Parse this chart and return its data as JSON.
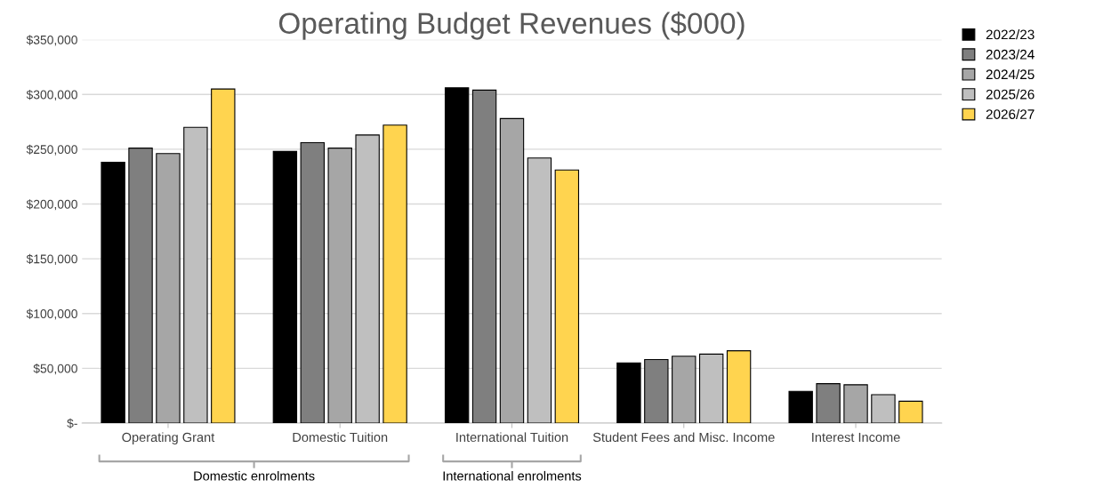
{
  "chart_data": {
    "type": "bar",
    "title": "Operating Budget Revenues ($000)",
    "categories": [
      "Operating Grant",
      "Domestic Tuition",
      "International Tuition",
      "Student Fees and Misc. Income",
      "Interest Income"
    ],
    "series": [
      {
        "name": "2022/23",
        "color": "#000000",
        "values": [
          238000,
          248000,
          306000,
          55000,
          29000
        ]
      },
      {
        "name": "2023/24",
        "color": "#7f7f7f",
        "values": [
          251000,
          256000,
          304000,
          58000,
          36000
        ]
      },
      {
        "name": "2024/25",
        "color": "#a6a6a6",
        "values": [
          246000,
          251000,
          278000,
          61000,
          35000
        ]
      },
      {
        "name": "2025/26",
        "color": "#bfbfbf",
        "values": [
          270000,
          263000,
          242000,
          63000,
          26000
        ]
      },
      {
        "name": "2026/27",
        "color": "#ffd44f",
        "values": [
          305000,
          272000,
          231000,
          66000,
          20000
        ]
      }
    ],
    "ylim": [
      0,
      350000
    ],
    "yticks": [
      {
        "value": 0,
        "label": "$-"
      },
      {
        "value": 50000,
        "label": "$50,000"
      },
      {
        "value": 100000,
        "label": "$100,000"
      },
      {
        "value": 150000,
        "label": "$150,000"
      },
      {
        "value": 200000,
        "label": "$200,000"
      },
      {
        "value": 250000,
        "label": "$250,000"
      },
      {
        "value": 300000,
        "label": "$300,000"
      },
      {
        "value": 350000,
        "label": "$350,000"
      }
    ],
    "grid": "y",
    "legend": "top right",
    "annotations": [
      "Domestic enrolments",
      "International enrolments"
    ]
  }
}
